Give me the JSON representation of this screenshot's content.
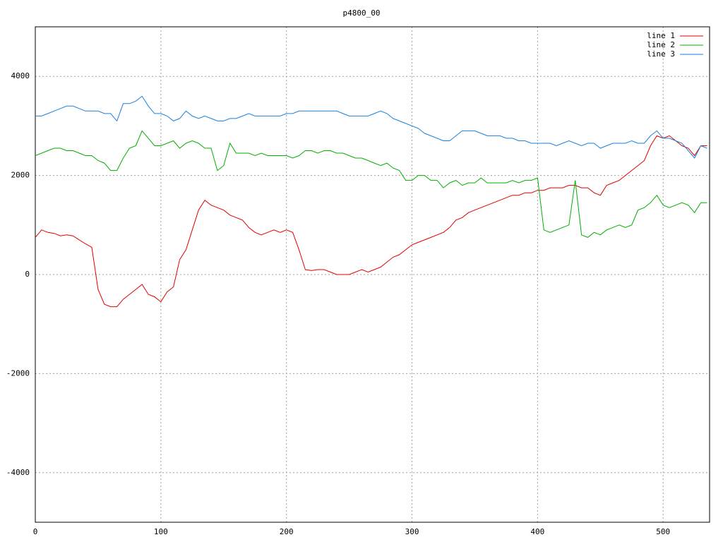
{
  "chart_data": {
    "type": "line",
    "title": "p4800_00",
    "x": [
      0,
      5,
      10,
      15,
      20,
      25,
      30,
      35,
      40,
      45,
      50,
      55,
      60,
      65,
      70,
      75,
      80,
      85,
      90,
      95,
      100,
      105,
      110,
      115,
      120,
      125,
      130,
      135,
      140,
      145,
      150,
      155,
      160,
      165,
      170,
      175,
      180,
      185,
      190,
      195,
      200,
      205,
      210,
      215,
      220,
      225,
      230,
      235,
      240,
      245,
      250,
      255,
      260,
      265,
      270,
      275,
      280,
      285,
      290,
      295,
      300,
      305,
      310,
      315,
      320,
      325,
      330,
      335,
      340,
      345,
      350,
      355,
      360,
      365,
      370,
      375,
      380,
      385,
      390,
      395,
      400,
      405,
      410,
      415,
      420,
      425,
      430,
      435,
      440,
      445,
      450,
      455,
      460,
      465,
      470,
      475,
      480,
      485,
      490,
      495,
      500,
      505,
      510,
      515,
      520,
      525,
      530,
      535
    ],
    "series": [
      {
        "name": "line 1",
        "color": "#e00000",
        "values": [
          750,
          900,
          850,
          830,
          780,
          800,
          780,
          700,
          620,
          550,
          -300,
          -600,
          -650,
          -650,
          -500,
          -400,
          -300,
          -200,
          -400,
          -450,
          -550,
          -350,
          -250,
          300,
          500,
          900,
          1300,
          1500,
          1400,
          1350,
          1300,
          1200,
          1150,
          1100,
          950,
          850,
          800,
          850,
          900,
          850,
          900,
          850,
          500,
          100,
          80,
          100,
          100,
          50,
          0,
          0,
          0,
          50,
          100,
          50,
          100,
          150,
          250,
          350,
          400,
          500,
          600,
          650,
          700,
          750,
          800,
          850,
          950,
          1100,
          1150,
          1250,
          1300,
          1350,
          1400,
          1450,
          1500,
          1550,
          1600,
          1600,
          1650,
          1650,
          1700,
          1700,
          1750,
          1750,
          1750,
          1800,
          1800,
          1750,
          1750,
          1650,
          1600,
          1800,
          1850,
          1900,
          2000,
          2100,
          2200,
          2300,
          2600,
          2800,
          2750,
          2800,
          2700,
          2600,
          2550,
          2400,
          2600,
          2600
        ]
      },
      {
        "name": "line 2",
        "color": "#00b000",
        "values": [
          2400,
          2450,
          2500,
          2550,
          2550,
          2500,
          2500,
          2450,
          2400,
          2400,
          2300,
          2250,
          2100,
          2100,
          2350,
          2550,
          2600,
          2900,
          2750,
          2600,
          2600,
          2650,
          2700,
          2550,
          2650,
          2700,
          2650,
          2550,
          2550,
          2100,
          2200,
          2650,
          2450,
          2450,
          2450,
          2400,
          2450,
          2400,
          2400,
          2400,
          2400,
          2350,
          2400,
          2500,
          2500,
          2450,
          2500,
          2500,
          2450,
          2450,
          2400,
          2350,
          2350,
          2300,
          2250,
          2200,
          2250,
          2150,
          2100,
          1900,
          1900,
          2000,
          2000,
          1900,
          1900,
          1750,
          1850,
          1900,
          1800,
          1850,
          1850,
          1950,
          1850,
          1850,
          1850,
          1850,
          1900,
          1850,
          1900,
          1900,
          1950,
          900,
          850,
          900,
          950,
          1000,
          1900,
          800,
          750,
          850,
          800,
          900,
          950,
          1000,
          950,
          1000,
          1300,
          1350,
          1450,
          1600,
          1400,
          1350,
          1400,
          1450,
          1400,
          1250,
          1450,
          1450
        ]
      },
      {
        "name": "line 3",
        "color": "#1a80e0",
        "values": [
          3200,
          3200,
          3250,
          3300,
          3350,
          3400,
          3400,
          3350,
          3300,
          3300,
          3300,
          3250,
          3250,
          3100,
          3450,
          3450,
          3500,
          3600,
          3400,
          3250,
          3250,
          3200,
          3100,
          3150,
          3300,
          3200,
          3150,
          3200,
          3150,
          3100,
          3100,
          3150,
          3150,
          3200,
          3250,
          3200,
          3200,
          3200,
          3200,
          3200,
          3250,
          3250,
          3300,
          3300,
          3300,
          3300,
          3300,
          3300,
          3300,
          3250,
          3200,
          3200,
          3200,
          3200,
          3250,
          3300,
          3250,
          3150,
          3100,
          3050,
          3000,
          2950,
          2850,
          2800,
          2750,
          2700,
          2700,
          2800,
          2900,
          2900,
          2900,
          2850,
          2800,
          2800,
          2800,
          2750,
          2750,
          2700,
          2700,
          2650,
          2650,
          2650,
          2650,
          2600,
          2650,
          2700,
          2650,
          2600,
          2650,
          2650,
          2550,
          2600,
          2650,
          2650,
          2650,
          2700,
          2650,
          2650,
          2800,
          2900,
          2750,
          2750,
          2700,
          2650,
          2500,
          2350,
          2600,
          2550
        ]
      }
    ],
    "xlim": [
      0,
      537
    ],
    "ylim": [
      -5000,
      5000
    ],
    "xticks": [
      0,
      100,
      200,
      300,
      400,
      500
    ],
    "yticks": [
      -4000,
      -2000,
      0,
      2000,
      4000
    ],
    "grid": true,
    "legend": "top-right"
  }
}
